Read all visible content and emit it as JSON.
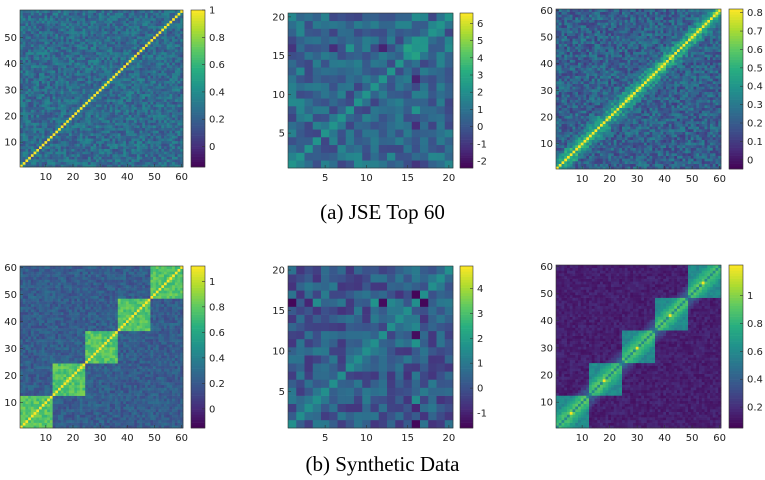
{
  "figure": {
    "captions": {
      "a": "(a) JSE Top 60",
      "b": "(b) Synthetic Data"
    }
  },
  "colormap": [
    "#440154",
    "#472d7b",
    "#3b528b",
    "#2c728e",
    "#21918c",
    "#28ae80",
    "#5ec962",
    "#addc30",
    "#fde725"
  ],
  "chart_data": [
    {
      "type": "heatmap",
      "id": "a1",
      "row": "a",
      "size": 60,
      "vlim": [
        -0.15,
        1
      ],
      "diag": 1,
      "offdiag_mean": 0.25,
      "offdiag_amp": 0.14,
      "block_size": 0,
      "block_level": 0,
      "smooth": false,
      "xticks": [
        10,
        20,
        30,
        40,
        50,
        60
      ],
      "yticks": [
        10,
        20,
        30,
        40,
        50
      ],
      "cbar_ticks": [
        0,
        0.2,
        0.4,
        0.6,
        0.8,
        1
      ]
    },
    {
      "type": "heatmap",
      "id": "a2",
      "row": "a",
      "size": 20,
      "vlim": [
        -2.4,
        6.6
      ],
      "diag": 2.2,
      "offdiag_mean": 0.6,
      "offdiag_amp": 1.2,
      "block_size": 0,
      "block_level": 0,
      "smooth": false,
      "hot": [
        16,
        16,
        6.5
      ],
      "xticks": [
        5,
        10,
        15,
        20
      ],
      "yticks": [
        5,
        10,
        15,
        20
      ],
      "cbar_ticks": [
        -2,
        -1,
        0,
        1,
        2,
        3,
        4,
        5,
        6
      ]
    },
    {
      "type": "heatmap",
      "id": "a3",
      "row": "a",
      "size": 60,
      "vlim": [
        -0.05,
        0.82
      ],
      "diag": 0.82,
      "offdiag_mean": 0.22,
      "offdiag_amp": 0.12,
      "block_size": 0,
      "block_level": 0,
      "smooth": true,
      "xticks": [
        10,
        20,
        30,
        40,
        50,
        60
      ],
      "yticks": [
        10,
        20,
        30,
        40,
        50,
        60
      ],
      "cbar_ticks": [
        0,
        0.1,
        0.2,
        0.3,
        0.4,
        0.5,
        0.6,
        0.7,
        0.8
      ]
    },
    {
      "type": "heatmap",
      "id": "b1",
      "row": "b",
      "size": 60,
      "vlim": [
        -0.15,
        1.12
      ],
      "diag": 1.12,
      "offdiag_mean": 0.22,
      "offdiag_amp": 0.1,
      "block_size": 12,
      "block_level": 0.55,
      "smooth": false,
      "xticks": [
        10,
        20,
        30,
        40,
        50,
        60
      ],
      "yticks": [
        10,
        20,
        30,
        40,
        50,
        60
      ],
      "cbar_ticks": [
        0,
        0.2,
        0.4,
        0.6,
        0.8,
        1
      ]
    },
    {
      "type": "heatmap",
      "id": "b2",
      "row": "b",
      "size": 20,
      "vlim": [
        -1.6,
        4.9
      ],
      "diag": 1.6,
      "offdiag_mean": 0.2,
      "offdiag_amp": 0.9,
      "block_size": 0,
      "block_level": 0,
      "smooth": false,
      "hot": [
        16,
        16,
        4.8
      ],
      "xticks": [
        5,
        10,
        15,
        20
      ],
      "yticks": [
        5,
        10,
        15,
        20
      ],
      "cbar_ticks": [
        -1,
        0,
        1,
        2,
        3,
        4
      ]
    },
    {
      "type": "heatmap",
      "id": "b3",
      "row": "b",
      "size": 60,
      "vlim": [
        0.05,
        1.22
      ],
      "diag": 0.6,
      "offdiag_mean": 0.15,
      "offdiag_amp": 0.05,
      "block_size": 12,
      "block_level": 0.45,
      "smooth": true,
      "block_peak": 1.2,
      "xticks": [
        10,
        20,
        30,
        40,
        50,
        60
      ],
      "yticks": [
        10,
        20,
        30,
        40,
        50,
        60
      ],
      "cbar_ticks": [
        0.2,
        0.4,
        0.6,
        0.8,
        1
      ]
    }
  ]
}
